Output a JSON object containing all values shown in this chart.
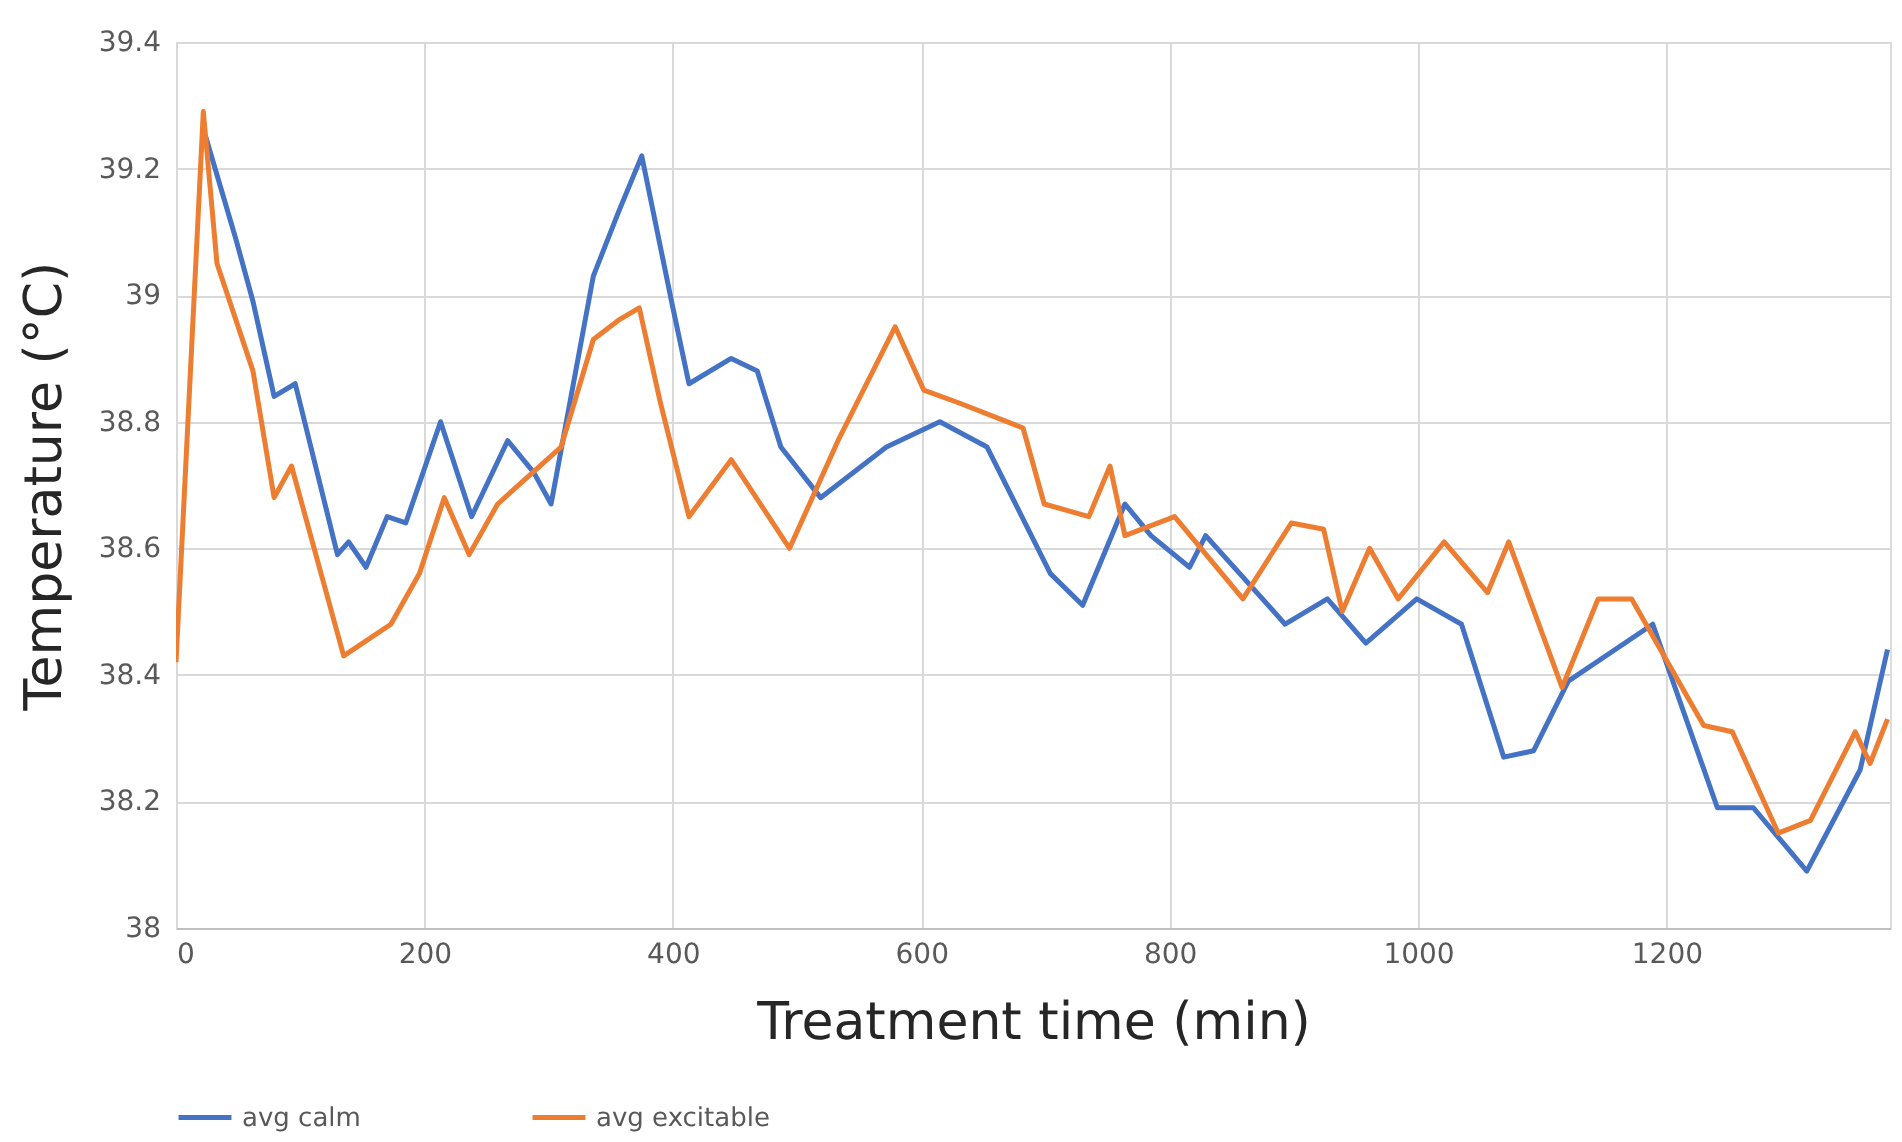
{
  "chart_data": {
    "type": "line",
    "xlabel": "Treatment time (min)",
    "ylabel": "Temperature (°C)",
    "xlim": [
      0,
      1380
    ],
    "xticks": [
      0,
      200,
      400,
      600,
      800,
      1000,
      1200
    ],
    "ylim": [
      38,
      39.4
    ],
    "yticks": [
      38,
      38.2,
      38.4,
      38.6,
      38.8,
      39,
      39.2,
      39.4
    ],
    "grid": true,
    "legend": "bottom",
    "marker": "none",
    "line_style": "solid",
    "series": [
      {
        "name": "avg calm",
        "color": "#4472c4",
        "x": [
          24,
          48,
          62,
          79,
          96,
          130,
          139,
          153,
          170,
          185,
          213,
          238,
          267,
          288,
          302,
          336,
          356,
          375,
          399,
          413,
          447,
          468,
          487,
          519,
          572,
          615,
          653,
          704,
          730,
          764,
          785,
          816,
          829,
          893,
          927,
          958,
          999,
          1035,
          1069,
          1093,
          1121,
          1189,
          1241,
          1270,
          1313,
          1356,
          1378
        ],
        "values": [
          39.25,
          39.09,
          38.99,
          38.84,
          38.86,
          38.59,
          38.61,
          38.57,
          38.65,
          38.64,
          38.8,
          38.65,
          38.77,
          38.72,
          38.67,
          39.03,
          39.13,
          39.22,
          38.99,
          38.86,
          38.9,
          38.88,
          38.76,
          38.68,
          38.76,
          38.8,
          38.76,
          38.56,
          38.51,
          38.67,
          38.62,
          38.57,
          38.62,
          38.48,
          38.52,
          38.45,
          38.52,
          38.48,
          38.27,
          38.28,
          38.39,
          38.48,
          38.19,
          38.19,
          38.09,
          38.25,
          38.44
        ]
      },
      {
        "name": "avg excitable",
        "color": "#ed7d31",
        "x": [
          0,
          22,
          33,
          62,
          79,
          93,
          135,
          173,
          196,
          216,
          236,
          259,
          310,
          336,
          356,
          373,
          390,
          413,
          447,
          494,
          533,
          579,
          602,
          630,
          682,
          699,
          735,
          752,
          764,
          804,
          859,
          898,
          924,
          939,
          961,
          984,
          1021,
          1056,
          1073,
          1116,
          1145,
          1172,
          1230,
          1253,
          1290,
          1316,
          1352,
          1364,
          1378
        ],
        "values": [
          38.42,
          39.29,
          39.05,
          38.88,
          38.68,
          38.73,
          38.43,
          38.48,
          38.56,
          38.68,
          38.59,
          38.67,
          38.76,
          38.93,
          38.96,
          38.98,
          38.83,
          38.65,
          38.74,
          38.6,
          38.77,
          38.95,
          38.85,
          38.83,
          38.79,
          38.67,
          38.65,
          38.73,
          38.62,
          38.65,
          38.52,
          38.64,
          38.63,
          38.5,
          38.6,
          38.52,
          38.61,
          38.53,
          38.61,
          38.38,
          38.52,
          38.52,
          38.32,
          38.31,
          38.15,
          38.17,
          38.31,
          38.26,
          38.33
        ]
      }
    ]
  }
}
